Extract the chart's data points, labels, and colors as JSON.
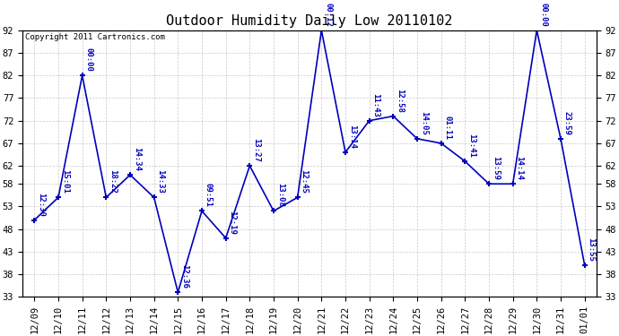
{
  "title": "Outdoor Humidity Daily Low 20110102",
  "copyright": "Copyright 2011 Cartronics.com",
  "x_labels": [
    "12/09",
    "12/10",
    "12/11",
    "12/12",
    "12/13",
    "12/14",
    "12/15",
    "12/16",
    "12/17",
    "12/18",
    "12/19",
    "12/20",
    "12/21",
    "12/22",
    "12/23",
    "12/24",
    "12/25",
    "12/26",
    "12/27",
    "12/28",
    "12/29",
    "12/30",
    "12/31",
    "01/01"
  ],
  "y_values": [
    50,
    55,
    82,
    55,
    60,
    55,
    34,
    52,
    46,
    62,
    52,
    55,
    92,
    65,
    72,
    73,
    68,
    67,
    63,
    58,
    58,
    92,
    68,
    40
  ],
  "time_labels": [
    "12:30",
    "15:01",
    "00:00",
    "18:22",
    "14:34",
    "14:33",
    "12:36",
    "09:51",
    "12:19",
    "13:27",
    "13:08",
    "12:45",
    "00:12",
    "13:14",
    "11:43",
    "12:58",
    "14:05",
    "01:11",
    "13:41",
    "13:59",
    "14:14",
    "00:00",
    "23:59",
    "13:55"
  ],
  "ylim": [
    33,
    92
  ],
  "yticks": [
    33,
    38,
    43,
    48,
    53,
    58,
    62,
    67,
    72,
    77,
    82,
    87,
    92
  ],
  "line_color": "#0000bb",
  "bg_color": "#ffffff",
  "grid_color": "#bbbbbb",
  "title_fontsize": 11,
  "label_fontsize": 6.5,
  "tick_fontsize": 7.5,
  "copyright_fontsize": 6.5
}
